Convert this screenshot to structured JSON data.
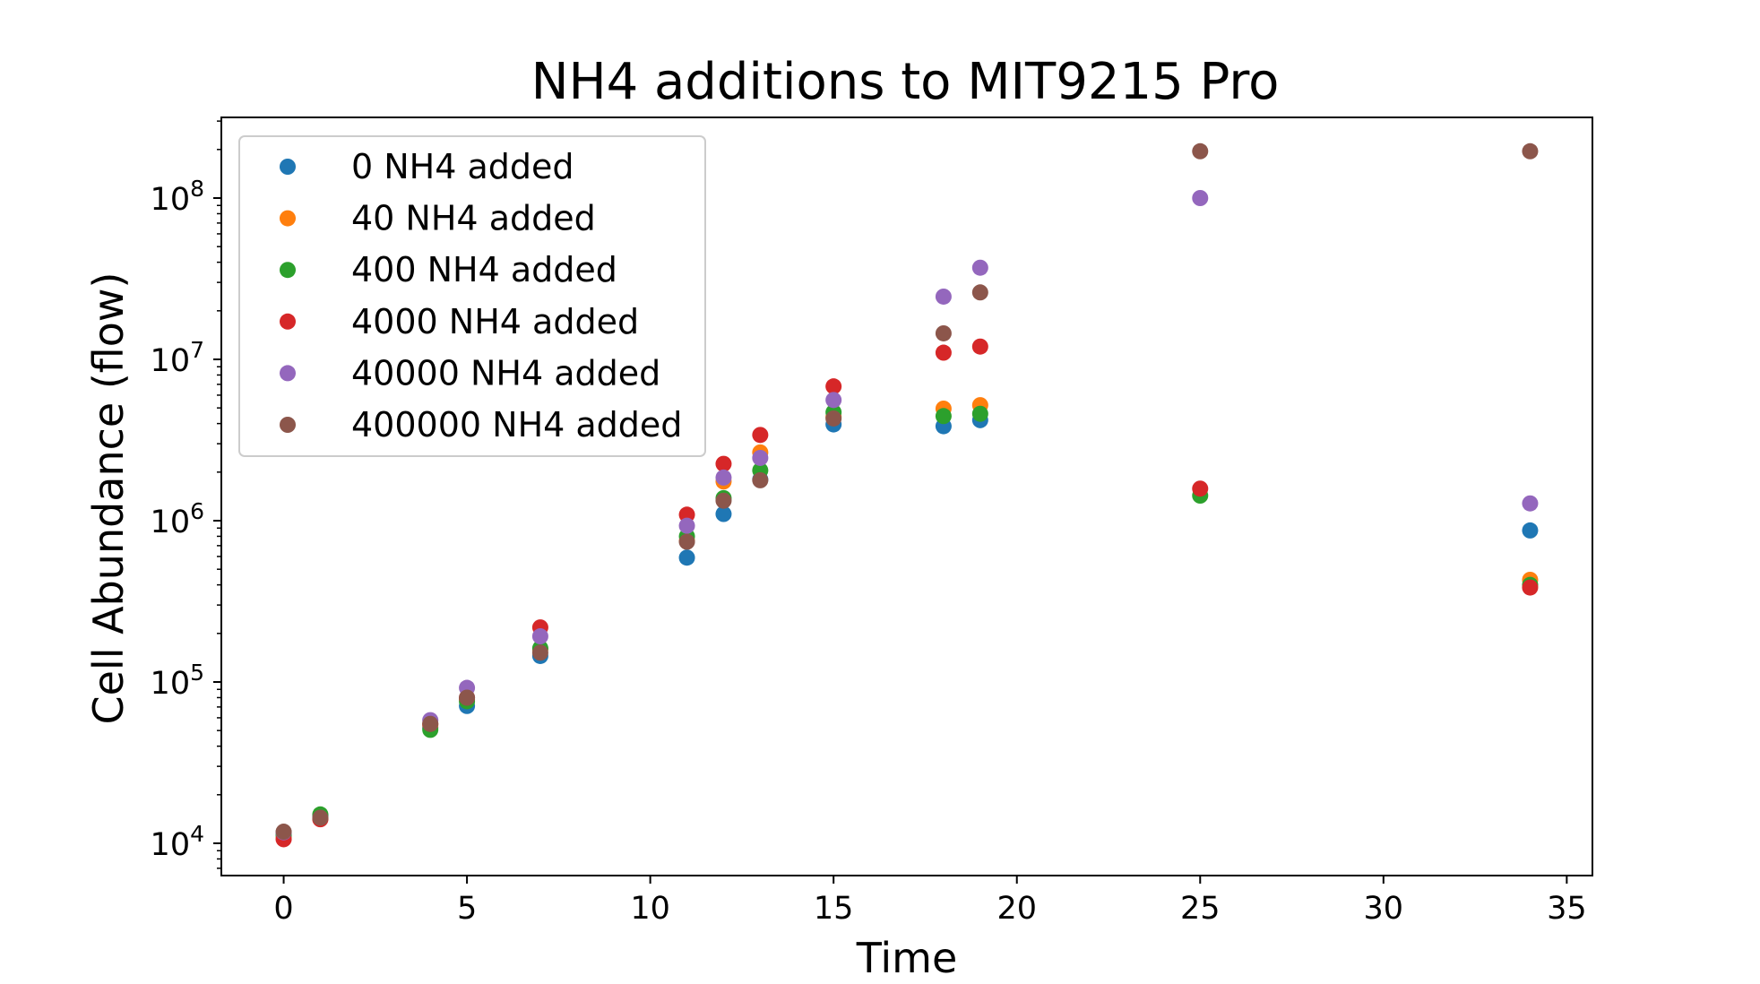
{
  "chart_data": {
    "type": "scatter",
    "title": "NH4 additions to MIT9215 Pro",
    "xlabel": "Time",
    "ylabel": "Cell Abundance (flow)",
    "xlim": [
      -1.7,
      35.7
    ],
    "ylim_log10": [
      3.8,
      8.5
    ],
    "yscale": "log",
    "x_ticks": [
      0,
      5,
      10,
      15,
      20,
      25,
      30,
      35
    ],
    "x_tick_labels": [
      "0",
      "5",
      "10",
      "15",
      "20",
      "25",
      "30",
      "35"
    ],
    "y_ticks_log10": [
      4,
      5,
      6,
      7,
      8
    ],
    "y_tick_base": "10",
    "y_tick_exponents": [
      "4",
      "5",
      "6",
      "7",
      "8"
    ],
    "grid": false,
    "legend_position": "upper-left",
    "series": [
      {
        "name": "0 NH4 added",
        "color": "#1f77b4",
        "points": [
          [
            0,
            11500
          ],
          [
            1,
            14800
          ],
          [
            4,
            52000
          ],
          [
            5,
            71000
          ],
          [
            7,
            145000
          ],
          [
            11,
            590000
          ],
          [
            12,
            1100000
          ],
          [
            13,
            1800000
          ],
          [
            15,
            3950000
          ],
          [
            18,
            3850000
          ],
          [
            19,
            4200000
          ],
          [
            34,
            870000
          ]
        ]
      },
      {
        "name": "40 NH4 added",
        "color": "#ff7f0e",
        "points": [
          [
            0,
            10800
          ],
          [
            1,
            14200
          ],
          [
            4,
            54000
          ],
          [
            5,
            78000
          ],
          [
            7,
            160000
          ],
          [
            11,
            750000
          ],
          [
            12,
            1750000
          ],
          [
            13,
            2650000
          ],
          [
            15,
            4400000
          ],
          [
            18,
            4950000
          ],
          [
            19,
            5200000
          ],
          [
            34,
            430000
          ]
        ]
      },
      {
        "name": "400 NH4 added",
        "color": "#2ca02c",
        "points": [
          [
            0,
            11200
          ],
          [
            1,
            15100
          ],
          [
            4,
            50500
          ],
          [
            5,
            76000
          ],
          [
            7,
            162000
          ],
          [
            11,
            800000
          ],
          [
            12,
            1380000
          ],
          [
            13,
            2050000
          ],
          [
            15,
            4700000
          ],
          [
            18,
            4450000
          ],
          [
            19,
            4600000
          ],
          [
            25,
            1430000
          ],
          [
            34,
            400000
          ]
        ]
      },
      {
        "name": "4000 NH4 added",
        "color": "#d62728",
        "points": [
          [
            0,
            10600
          ],
          [
            1,
            14100
          ],
          [
            4,
            55000
          ],
          [
            5,
            80000
          ],
          [
            7,
            218000
          ],
          [
            11,
            1090000
          ],
          [
            12,
            2250000
          ],
          [
            13,
            3400000
          ],
          [
            15,
            6800000
          ],
          [
            18,
            11000000
          ],
          [
            19,
            12000000
          ],
          [
            25,
            1580000
          ],
          [
            34,
            385000
          ]
        ]
      },
      {
        "name": "40000 NH4 added",
        "color": "#9467bd",
        "points": [
          [
            0,
            11700
          ],
          [
            4,
            58000
          ],
          [
            5,
            92000
          ],
          [
            7,
            192000
          ],
          [
            11,
            930000
          ],
          [
            12,
            1850000
          ],
          [
            13,
            2450000
          ],
          [
            15,
            5600000
          ],
          [
            18,
            24500000
          ],
          [
            19,
            37000000
          ],
          [
            25,
            100000000
          ],
          [
            34,
            1280000
          ]
        ]
      },
      {
        "name": "400000 NH4 added",
        "color": "#8c564b",
        "points": [
          [
            0,
            11800
          ],
          [
            1,
            14400
          ],
          [
            4,
            55000
          ],
          [
            5,
            80000
          ],
          [
            7,
            152000
          ],
          [
            11,
            740000
          ],
          [
            12,
            1330000
          ],
          [
            13,
            1780000
          ],
          [
            15,
            4300000
          ],
          [
            18,
            14500000
          ],
          [
            19,
            26000000
          ],
          [
            25,
            195000000
          ],
          [
            34,
            195000000
          ]
        ]
      }
    ]
  }
}
